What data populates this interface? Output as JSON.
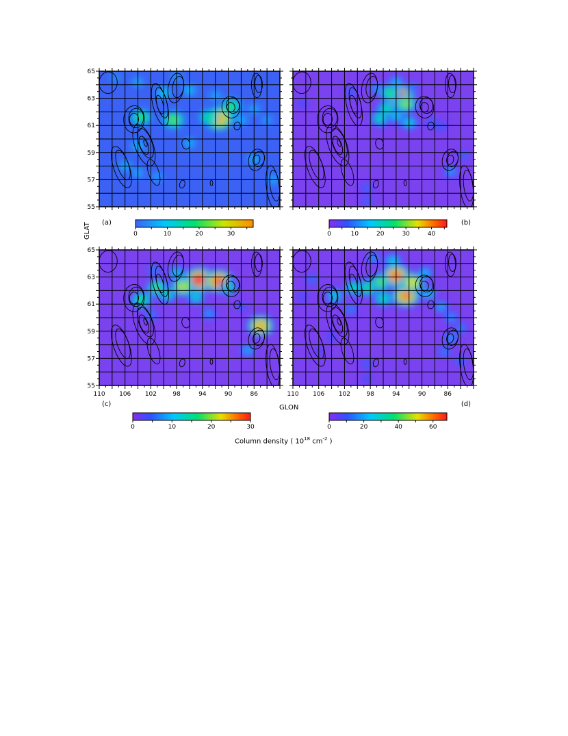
{
  "figure": {
    "x_axis_label": "GLON",
    "y_axis_label": "GLAT",
    "colorbar_title": "Column density ( 10",
    "colorbar_exp": "18",
    "colorbar_unit": " cm",
    "colorbar_unit_exp": "-2",
    "colorbar_close": " )"
  },
  "chart_data": [
    {
      "type": "heatmap",
      "panel_label": "(a)",
      "x_ticks": [
        "110",
        "106",
        "102",
        "98",
        "94",
        "90",
        "86"
      ],
      "y_ticks": [
        "65",
        "63",
        "61",
        "59",
        "57",
        "55"
      ],
      "xlim": [
        82,
        110
      ],
      "ylim": [
        55,
        65
      ],
      "x_reversed": true,
      "grid": true,
      "background_color": "#3b62f5",
      "colorbar": {
        "ticks": [
          "0",
          "10",
          "20",
          "30"
        ],
        "max": 37,
        "min": 0
      },
      "peaks": [
        {
          "glon": 91.5,
          "glat": 61.5,
          "value": 33
        },
        {
          "glon": 98.5,
          "glat": 61.4,
          "value": 22
        },
        {
          "glon": 103.5,
          "glat": 61.6,
          "value": 20
        },
        {
          "glon": 93,
          "glat": 61.6,
          "value": 18
        },
        {
          "glon": 89.5,
          "glat": 62.4,
          "value": 20
        },
        {
          "glon": 100,
          "glat": 63.4,
          "value": 12
        },
        {
          "glon": 96,
          "glat": 63.6,
          "value": 10
        },
        {
          "glon": 92,
          "glat": 63.2,
          "value": 8
        },
        {
          "glon": 88,
          "glat": 61.4,
          "value": 9
        },
        {
          "glon": 86,
          "glat": 62.2,
          "value": 8
        },
        {
          "glon": 84,
          "glat": 61.4,
          "value": 7
        },
        {
          "glon": 104,
          "glat": 59.5,
          "value": 10
        },
        {
          "glon": 106,
          "glat": 58,
          "value": 9
        },
        {
          "glon": 104,
          "glat": 57.5,
          "value": 8
        },
        {
          "glon": 96,
          "glat": 59.7,
          "value": 9
        },
        {
          "glon": 86,
          "glat": 58.5,
          "value": 9
        },
        {
          "glon": 83,
          "glat": 57,
          "value": 8
        },
        {
          "glon": 101,
          "glat": 57.2,
          "value": 7
        },
        {
          "glon": 104,
          "glat": 64.2,
          "value": 8
        },
        {
          "glon": 98,
          "glat": 64.6,
          "value": 7
        },
        {
          "glon": 107.5,
          "glat": 64.5,
          "value": 6
        }
      ]
    },
    {
      "type": "heatmap",
      "panel_label": "(b)",
      "x_ticks": [
        "110",
        "106",
        "102",
        "98",
        "94",
        "90",
        "86"
      ],
      "y_ticks": [
        "65",
        "63",
        "61",
        "59",
        "57",
        "55"
      ],
      "xlim": [
        82,
        110
      ],
      "ylim": [
        55,
        65
      ],
      "x_reversed": true,
      "grid": true,
      "background_color": "#7b42f0",
      "colorbar": {
        "ticks": [
          "0",
          "10",
          "20",
          "30",
          "40"
        ],
        "max": 46,
        "min": 0
      },
      "peaks": [
        {
          "glon": 93.5,
          "glat": 63.1,
          "value": 44
        },
        {
          "glon": 92.5,
          "glat": 62.6,
          "value": 30
        },
        {
          "glon": 95,
          "glat": 63.4,
          "value": 26
        },
        {
          "glon": 95.5,
          "glat": 62.2,
          "value": 24
        },
        {
          "glon": 96.5,
          "glat": 61.5,
          "value": 22
        },
        {
          "glon": 94,
          "glat": 61.7,
          "value": 18
        },
        {
          "glon": 92,
          "glat": 61.2,
          "value": 20
        },
        {
          "glon": 94,
          "glat": 64.2,
          "value": 16
        },
        {
          "glon": 97,
          "glat": 63.7,
          "value": 14
        },
        {
          "glon": 91.5,
          "glat": 63.8,
          "value": 12
        },
        {
          "glon": 88.5,
          "glat": 61.2,
          "value": 10
        },
        {
          "glon": 87,
          "glat": 60.9,
          "value": 9
        },
        {
          "glon": 85.5,
          "glat": 57.6,
          "value": 14
        },
        {
          "glon": 83.5,
          "glat": 58.8,
          "value": 10
        },
        {
          "glon": 101,
          "glat": 63.5,
          "value": 10
        },
        {
          "glon": 108.5,
          "glat": 62.6,
          "value": 8
        },
        {
          "glon": 98.5,
          "glat": 56.4,
          "value": 10
        },
        {
          "glon": 98.5,
          "glat": 55.4,
          "value": 10
        }
      ]
    },
    {
      "type": "heatmap",
      "panel_label": "(c)",
      "x_ticks": [
        "110",
        "106",
        "102",
        "98",
        "94",
        "90",
        "86"
      ],
      "y_ticks": [
        "65",
        "63",
        "61",
        "59",
        "57",
        "55"
      ],
      "xlim": [
        82,
        110
      ],
      "ylim": [
        55,
        65
      ],
      "x_reversed": true,
      "grid": true,
      "background_color": "#7b42f0",
      "colorbar": {
        "ticks": [
          "0",
          "10",
          "20",
          "30"
        ],
        "max": 30,
        "min": 0
      },
      "peaks": [
        {
          "glon": 94.5,
          "glat": 62.8,
          "value": 29
        },
        {
          "glon": 91.5,
          "glat": 62.7,
          "value": 27
        },
        {
          "glon": 97,
          "glat": 62.3,
          "value": 21
        },
        {
          "glon": 101,
          "glat": 62.2,
          "value": 18
        },
        {
          "glon": 103.5,
          "glat": 61.3,
          "value": 17
        },
        {
          "glon": 99.5,
          "glat": 61.7,
          "value": 14
        },
        {
          "glon": 95,
          "glat": 61.5,
          "value": 13
        },
        {
          "glon": 90,
          "glat": 62.2,
          "value": 14
        },
        {
          "glon": 98,
          "glat": 63.3,
          "value": 12
        },
        {
          "glon": 85,
          "glat": 59.4,
          "value": 24
        },
        {
          "glon": 87,
          "glat": 57.6,
          "value": 10
        },
        {
          "glon": 101.5,
          "glat": 63.5,
          "value": 8
        },
        {
          "glon": 102,
          "glat": 60.2,
          "value": 8
        },
        {
          "glon": 93,
          "glat": 60.3,
          "value": 9
        },
        {
          "glon": 88,
          "glat": 60.8,
          "value": 6
        }
      ]
    },
    {
      "type": "heatmap",
      "panel_label": "(d)",
      "x_ticks": [
        "110",
        "106",
        "102",
        "98",
        "94",
        "90",
        "86"
      ],
      "y_ticks": [
        "65",
        "63",
        "61",
        "59",
        "57",
        "55"
      ],
      "xlim": [
        82,
        110
      ],
      "ylim": [
        55,
        65
      ],
      "x_reversed": true,
      "grid": true,
      "background_color": "#7b42f0",
      "colorbar": {
        "ticks": [
          "0",
          "20",
          "40",
          "60"
        ],
        "max": 68,
        "min": 0
      },
      "peaks": [
        {
          "glon": 94,
          "glat": 63.1,
          "value": 60
        },
        {
          "glon": 92.5,
          "glat": 61.6,
          "value": 58
        },
        {
          "glon": 91.5,
          "glat": 62.6,
          "value": 50
        },
        {
          "glon": 96.5,
          "glat": 62.6,
          "value": 42
        },
        {
          "glon": 98.5,
          "glat": 62.2,
          "value": 38
        },
        {
          "glon": 100.5,
          "glat": 62.2,
          "value": 34
        },
        {
          "glon": 103.5,
          "glat": 61.6,
          "value": 30
        },
        {
          "glon": 96,
          "glat": 61.4,
          "value": 34
        },
        {
          "glon": 94.5,
          "glat": 64.2,
          "value": 28
        },
        {
          "glon": 97.5,
          "glat": 64.4,
          "value": 20
        },
        {
          "glon": 89.5,
          "glat": 63.3,
          "value": 24
        },
        {
          "glon": 89,
          "glat": 61.8,
          "value": 26
        },
        {
          "glon": 87,
          "glat": 60.8,
          "value": 22
        },
        {
          "glon": 101,
          "glat": 60.6,
          "value": 18
        },
        {
          "glon": 85.5,
          "glat": 60,
          "value": 20
        },
        {
          "glon": 84,
          "glat": 59.2,
          "value": 18
        },
        {
          "glon": 85.5,
          "glat": 58.5,
          "value": 20
        },
        {
          "glon": 86.5,
          "glat": 57.5,
          "value": 18
        },
        {
          "glon": 84,
          "glat": 56.8,
          "value": 16
        },
        {
          "glon": 107,
          "glat": 62.8,
          "value": 16
        },
        {
          "glon": 108.5,
          "glat": 61.5,
          "value": 12
        },
        {
          "glon": 106,
          "glat": 57.5,
          "value": 10
        },
        {
          "glon": 104,
          "glat": 58.6,
          "value": 12
        },
        {
          "glon": 98.5,
          "glat": 56.6,
          "value": 14
        },
        {
          "glon": 98.5,
          "glat": 55.5,
          "value": 12
        }
      ]
    }
  ]
}
